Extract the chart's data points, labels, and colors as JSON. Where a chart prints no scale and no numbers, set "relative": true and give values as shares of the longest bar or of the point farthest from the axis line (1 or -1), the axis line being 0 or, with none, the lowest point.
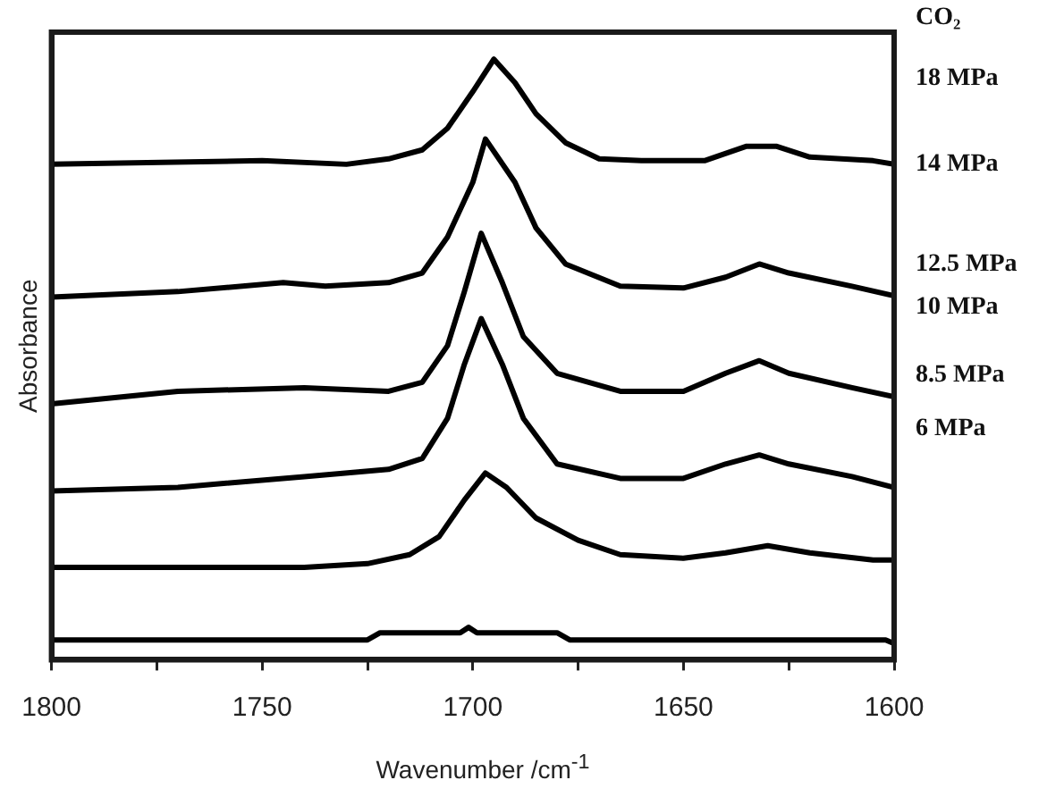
{
  "chart_data": {
    "type": "line",
    "relative": true,
    "xlabel": "Wavenumber /cm$^{-1}$",
    "ylabel": "Absorbance",
    "xlim": [
      1800,
      1600
    ],
    "xticks": [
      1800,
      {
        "value": 1775,
        "label": null
      },
      1750,
      {
        "value": 1725,
        "label": null
      },
      1700,
      {
        "value": 1675,
        "label": null
      },
      1650,
      {
        "value": 1625,
        "label": null
      },
      1600
    ],
    "grid": false,
    "legend": false,
    "marker": "none",
    "line_style": "solid",
    "annotations": [
      "CO₂",
      "18 MPa",
      "14 MPa",
      "12.5 MPa",
      "10 MPa",
      "8.5 MPa",
      "6 MPa"
    ],
    "series": [
      {
        "color": "#000000",
        "x": [
          1800,
          1750,
          1730,
          1720,
          1712,
          1706,
          1700,
          1695,
          1690,
          1685,
          1678,
          1670,
          1660,
          1645,
          1635,
          1628,
          1620,
          1605,
          1600
        ],
        "values": [
          0.825,
          0.831,
          0.825,
          0.834,
          0.849,
          0.885,
          0.946,
          1.0,
          0.961,
          0.909,
          0.861,
          0.834,
          0.831,
          0.831,
          0.855,
          0.855,
          0.837,
          0.831,
          0.825
        ]
      },
      {
        "color": "#000000",
        "x": [
          1800,
          1770,
          1745,
          1735,
          1720,
          1712,
          1706,
          1700,
          1697,
          1690,
          1685,
          1678,
          1665,
          1650,
          1640,
          1632,
          1625,
          1610,
          1600
        ],
        "values": [
          0.604,
          0.613,
          0.628,
          0.622,
          0.628,
          0.644,
          0.704,
          0.795,
          0.867,
          0.795,
          0.719,
          0.659,
          0.622,
          0.619,
          0.637,
          0.659,
          0.644,
          0.622,
          0.606
        ]
      },
      {
        "color": "#000000",
        "x": [
          1800,
          1770,
          1740,
          1720,
          1712,
          1706,
          1702,
          1698,
          1693,
          1688,
          1680,
          1665,
          1650,
          1640,
          1632,
          1625,
          1610,
          1600
        ],
        "values": [
          0.426,
          0.447,
          0.453,
          0.447,
          0.462,
          0.523,
          0.613,
          0.71,
          0.628,
          0.538,
          0.477,
          0.447,
          0.447,
          0.477,
          0.498,
          0.477,
          0.453,
          0.438
        ]
      },
      {
        "color": "#000000",
        "x": [
          1800,
          1770,
          1740,
          1720,
          1712,
          1706,
          1702,
          1698,
          1693,
          1688,
          1680,
          1665,
          1650,
          1640,
          1632,
          1625,
          1610,
          1600
        ],
        "values": [
          0.281,
          0.287,
          0.305,
          0.317,
          0.335,
          0.402,
          0.492,
          0.568,
          0.492,
          0.402,
          0.326,
          0.302,
          0.302,
          0.326,
          0.341,
          0.326,
          0.305,
          0.287
        ]
      },
      {
        "color": "#000000",
        "x": [
          1800,
          1740,
          1725,
          1715,
          1708,
          1702,
          1697,
          1692,
          1685,
          1675,
          1665,
          1650,
          1640,
          1630,
          1620,
          1605,
          1600
        ],
        "values": [
          0.154,
          0.154,
          0.16,
          0.175,
          0.205,
          0.266,
          0.311,
          0.287,
          0.236,
          0.199,
          0.175,
          0.169,
          0.178,
          0.19,
          0.178,
          0.166,
          0.166
        ]
      },
      {
        "color": "#000000",
        "x": [
          1800,
          1725,
          1722,
          1703,
          1701,
          1699,
          1680,
          1677,
          1602,
          1600
        ],
        "values": [
          0.033,
          0.033,
          0.045,
          0.045,
          0.054,
          0.045,
          0.045,
          0.033,
          0.033,
          0.027
        ]
      }
    ]
  }
}
